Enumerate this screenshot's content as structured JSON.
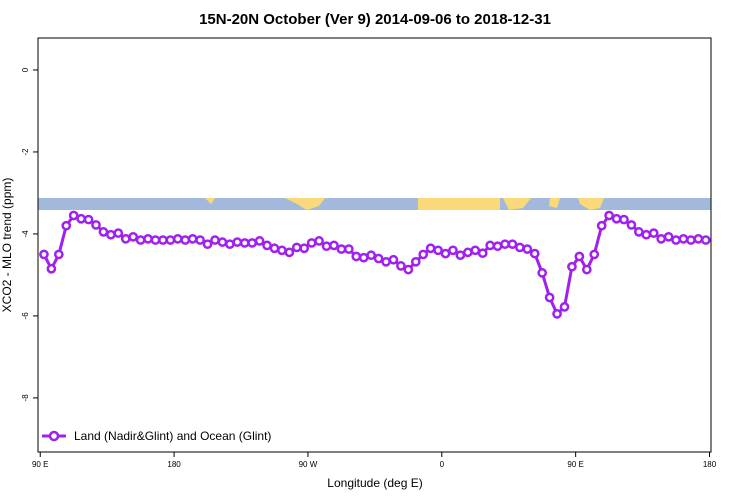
{
  "chart_data": {
    "type": "line",
    "title": "15N-20N October (Ver 9)   2014-09-06 to 2018-12-31",
    "x_label": "Longitude (deg E)",
    "y_label": "XCO2 - MLO trend (ppm)",
    "x": [
      92.5,
      97.5,
      102.5,
      107.5,
      112.5,
      117.5,
      122.5,
      127.5,
      132.5,
      137.5,
      142.5,
      147.5,
      152.5,
      157.5,
      162.5,
      167.5,
      172.5,
      177.5,
      182.5,
      187.5,
      192.5,
      197.5,
      202.5,
      207.5,
      212.5,
      217.5,
      222.5,
      227.5,
      232.5,
      237.5,
      242.5,
      247.5,
      252.5,
      257.5,
      262.5,
      267.5,
      272.5,
      277.5,
      282.5,
      287.5,
      292.5,
      297.5,
      302.5,
      307.5,
      312.5,
      317.5,
      322.5,
      327.5,
      332.5,
      337.5,
      342.5,
      347.5,
      352.5,
      357.5,
      362.5,
      367.5,
      372.5,
      377.5,
      382.5,
      387.5,
      392.5,
      397.5,
      402.5,
      407.5,
      412.5,
      417.5,
      422.5,
      427.5,
      432.5,
      437.5,
      442.5,
      447.5,
      452.5,
      457.5,
      462.5,
      467.5,
      472.5,
      477.5,
      482.5,
      487.5,
      492.5,
      497.5,
      502.5,
      507.5,
      512.5,
      517.5,
      522.5,
      527.5,
      532.5,
      537.5
    ],
    "series": [
      {
        "name": "Land (Nadir&Glint) and Ocean (Glint)",
        "color": "#a020f0",
        "values": [
          -4.5,
          -4.85,
          -4.5,
          -3.8,
          -3.55,
          -3.63,
          -3.65,
          -3.78,
          -3.95,
          -4.02,
          -3.98,
          -4.12,
          -4.07,
          -4.15,
          -4.12,
          -4.15,
          -4.15,
          -4.15,
          -4.12,
          -4.15,
          -4.12,
          -4.15,
          -4.25,
          -4.15,
          -4.2,
          -4.25,
          -4.2,
          -4.22,
          -4.22,
          -4.17,
          -4.28,
          -4.35,
          -4.4,
          -4.45,
          -4.33,
          -4.35,
          -4.22,
          -4.17,
          -4.3,
          -4.28,
          -4.37,
          -4.37,
          -4.55,
          -4.58,
          -4.52,
          -4.6,
          -4.68,
          -4.63,
          -4.78,
          -4.87,
          -4.68,
          -4.5,
          -4.35,
          -4.4,
          -4.48,
          -4.4,
          -4.52,
          -4.45,
          -4.4,
          -4.47,
          -4.28,
          -4.3,
          -4.25,
          -4.25,
          -4.33,
          -4.37,
          -4.48,
          -4.95,
          -5.55,
          -5.95,
          -5.78,
          -4.8,
          -4.55,
          -4.87,
          -4.5,
          -3.8,
          -3.55,
          -3.63,
          -3.65,
          -3.78,
          -3.95,
          -4.02,
          -3.98,
          -4.12,
          -4.07,
          -4.15,
          -4.12,
          -4.15,
          -4.12,
          -4.15
        ]
      }
    ],
    "xlim": [
      88.5,
      541
    ],
    "xticks": [
      {
        "value": 90,
        "label": "90 E"
      },
      180,
      {
        "value": 270,
        "label": "90 W"
      },
      {
        "value": 360,
        "label": "0"
      },
      {
        "value": 450,
        "label": "90 E"
      },
      {
        "value": 540,
        "label": "180"
      }
    ],
    "ylim": [
      -9.32,
      0.78
    ],
    "yticks": [
      0,
      -2,
      -4,
      -6,
      -8
    ],
    "legend": "bottom-left"
  }
}
